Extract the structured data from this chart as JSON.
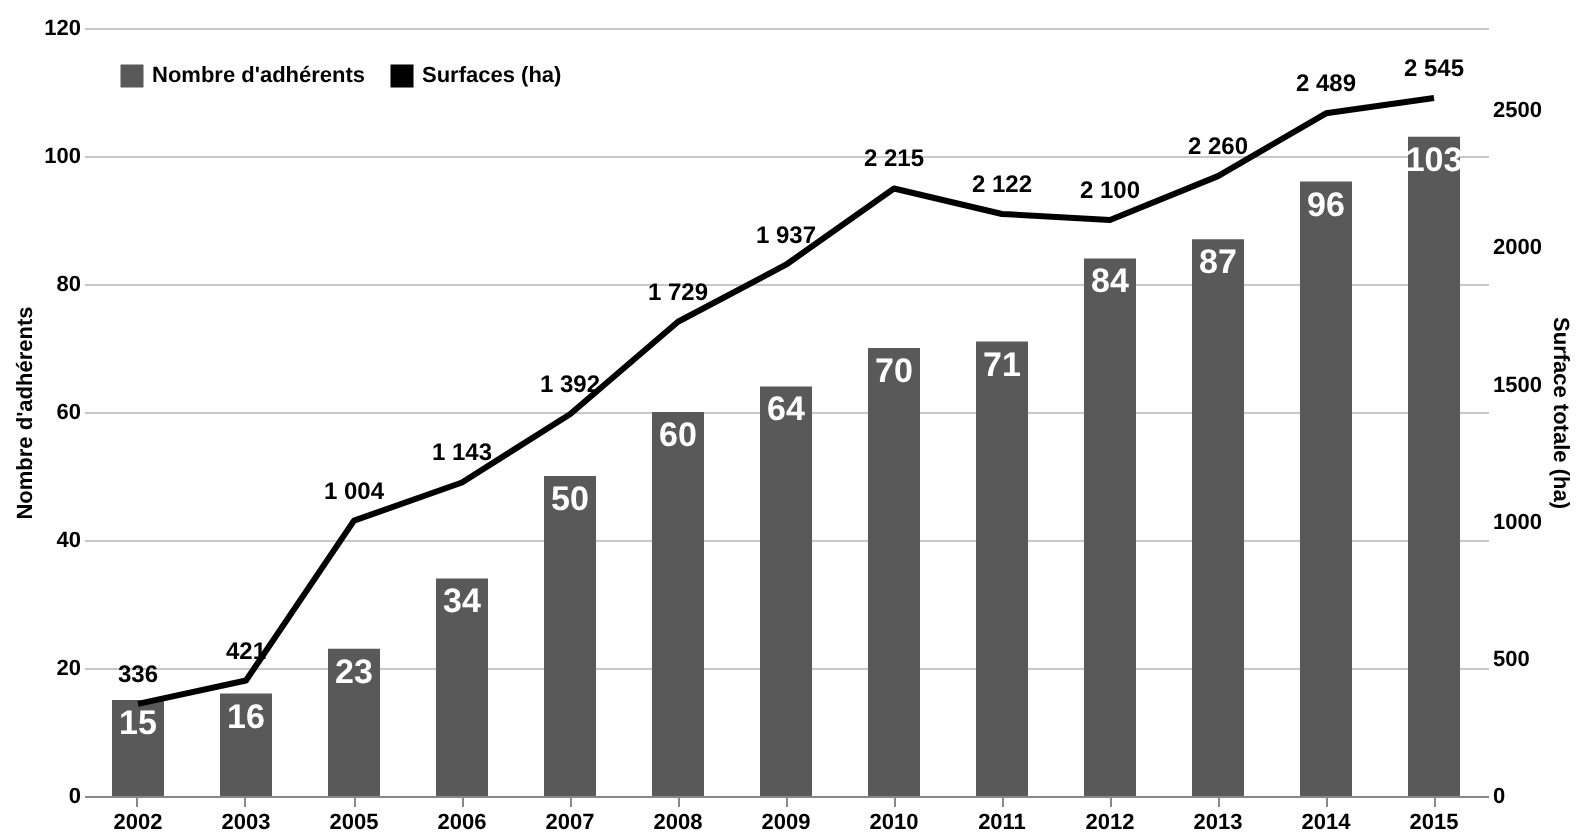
{
  "chart_data": {
    "type": "bar",
    "categories": [
      "2002",
      "2003",
      "2005",
      "2006",
      "2007",
      "2008",
      "2009",
      "2010",
      "2011",
      "2012",
      "2013",
      "2014",
      "2015"
    ],
    "series": [
      {
        "name": "Nombre d'adhérents",
        "color": "#595959",
        "values": [
          15,
          16,
          23,
          34,
          50,
          60,
          64,
          70,
          71,
          84,
          87,
          96,
          103
        ],
        "value_labels": [
          "15",
          "16",
          "23",
          "34",
          "50",
          "60",
          "64",
          "70",
          "71",
          "84",
          "87",
          "96",
          "103"
        ]
      },
      {
        "name": "Surfaces (ha)",
        "type": "line",
        "axis": "y2",
        "color": "#000000",
        "values": [
          336,
          421,
          1004,
          1143,
          1392,
          1729,
          1937,
          2215,
          2122,
          2100,
          2260,
          2489,
          2545
        ],
        "value_labels": [
          "336",
          "421",
          "1 004",
          "1 143",
          "1 392",
          "1 729",
          "1 937",
          "2 215",
          "2 122",
          "2 100",
          "2 260",
          "2 489",
          "2 545"
        ]
      }
    ],
    "ylabel": "Nombre d'adhérents",
    "y2label": "Surface totale (ha)",
    "ylim": [
      0,
      120
    ],
    "yticks": [
      0,
      20,
      40,
      60,
      80,
      100,
      120
    ],
    "y2lim": [
      0,
      2800
    ],
    "y2ticks": [
      0,
      500,
      1000,
      1500,
      2000,
      2500
    ],
    "grid": "y",
    "legend": "top left",
    "marker": "none",
    "line_style": "solid"
  }
}
